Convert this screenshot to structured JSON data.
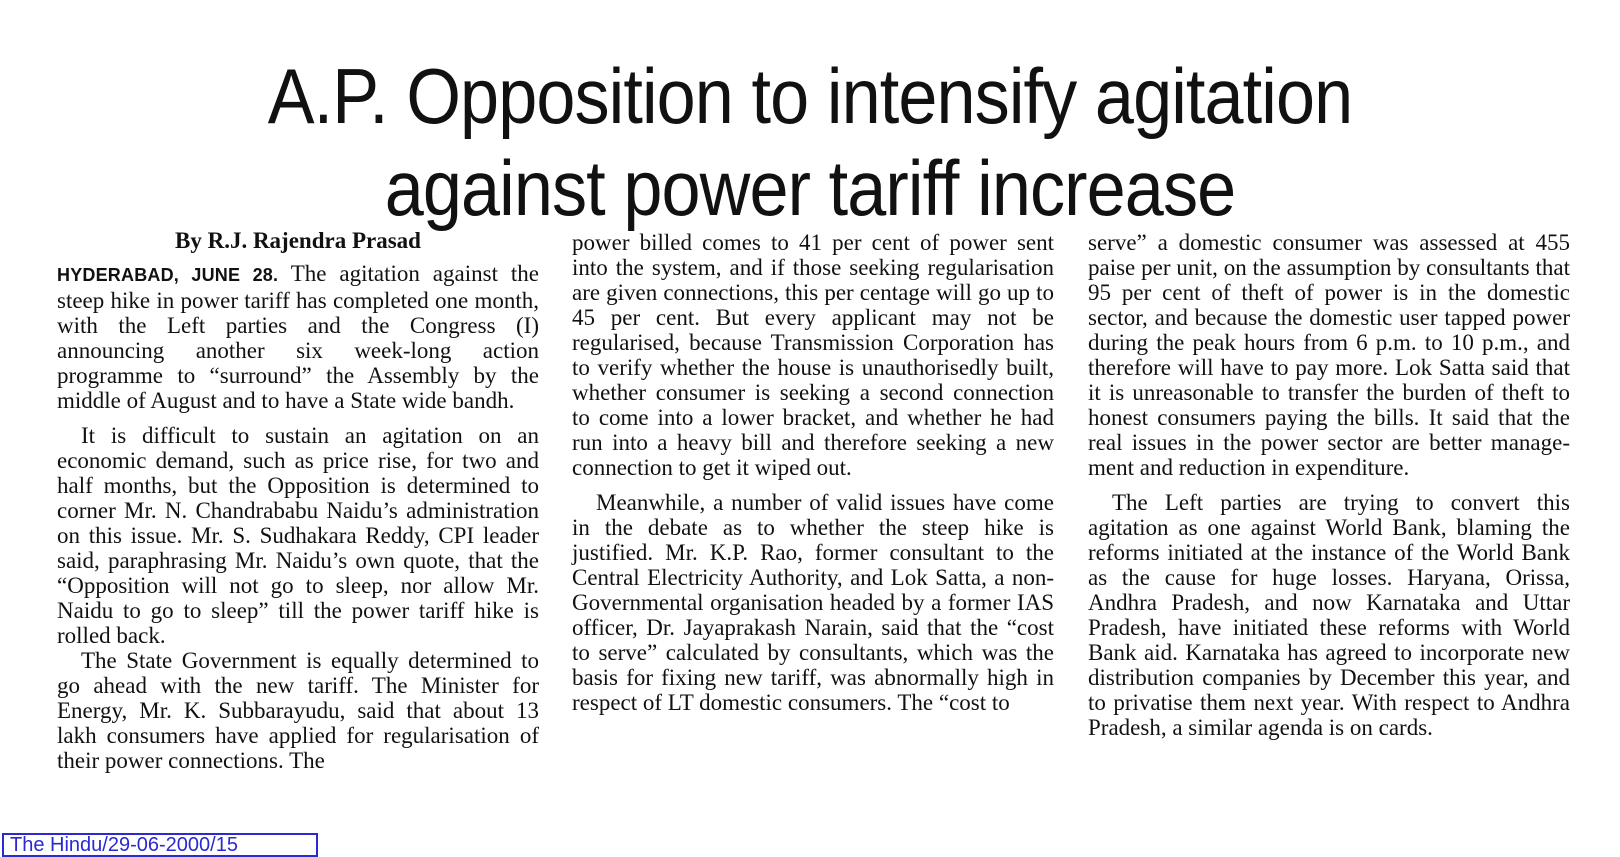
{
  "article": {
    "headline_line1": "A.P. Opposition to intensify agitation",
    "headline_line2": "against power tariff increase",
    "byline": "By R.J. Rajendra Prasad",
    "dateline": "HYDERABAD, JUNE 28.",
    "col1": {
      "p1": "The agitation against the steep hike in power tariff has completed one month, with the Left parties and the Congress (I) announcing another six week-long action programme to “surround” the Assembly by the middle of August and to have a State wide bandh.",
      "p2": "It is difficult to sustain an agitation on an economic demand, such as price rise, for two and half months, but the Opposition is deter­mined to corner Mr. N. Chandrababu Naidu’s administration on this issue. Mr. S. Sudhakara Reddy, CPI leader said, paraphrasing Mr. Nai­du’s own quote, that the “Opposition will not go to sleep, nor allow Mr. Naidu to go to sleep” till the power tariff hike is rolled back.",
      "p3": "The State Government is equally deter­mined to go ahead with the new tariff. The Minister for Energy, Mr. K. Subbarayudu, said that about 13 lakh consumers have applied for regularisation of their power connections. The"
    },
    "col2": {
      "p1": "power billed comes to 41 per cent of power sent into the system, and if those seeking regu­larisation are given connections, this per cen­tage will go up to 45 per cent. But every applicant may not be regularised, because Transmission Corporation has to verify whether the house is unauthorisedly built, whether consumer is seeking a second con­nection to come into a lower bracket, and whether he had run into a heavy bill and there­fore seeking a new connection to get it wiped out.",
      "p2": "Meanwhile, a number of valid issues have come in the debate as to whether the steep hike is justified. Mr. K.P. Rao, former consult­ant to the Central Electricity Authority, and Lok Satta, a non-Governmental organisation headed by a former IAS officer, Dr. Jayapra­kash Narain, said that the “cost to serve” cal­culated by consultants, which was the basis for fixing new tariff, was abnormally high in re­spect of LT domestic consumers. The “cost to"
    },
    "col3": {
      "p1": "serve” a domestic consumer was assessed at 455 paise per unit, on the assumption by con­sultants that 95 per cent of theft of power is in the domestic sector, and because the domestic user tapped power during the peak hours from 6 p.m. to 10 p.m., and therefore will have to pay more. Lok Satta said that it is unreason­able to transfer the burden of theft to honest consumers paying the bills. It said that the real issues in the power sector are better manage­ment and reduction in expenditure.",
      "p2": "The Left parties are trying to convert this agitation as one against World Bank, blaming the reforms initiated at the instance of the World Bank as the cause for huge losses. Ha­ryana, Orissa, Andhra Pradesh, and now Kar­nataka and Uttar Pradesh, have initiated these reforms with World Bank aid. Karnataka has agreed to incorporate new distribution com­panies by December this year, and to privatise them next year. With respect to Andhra Pra­desh, a similar agenda is on cards."
    }
  },
  "source": {
    "label": "The Hindu/29-06-2000/15"
  },
  "colors": {
    "text": "#111111",
    "source_box": "#2a2ad0"
  }
}
